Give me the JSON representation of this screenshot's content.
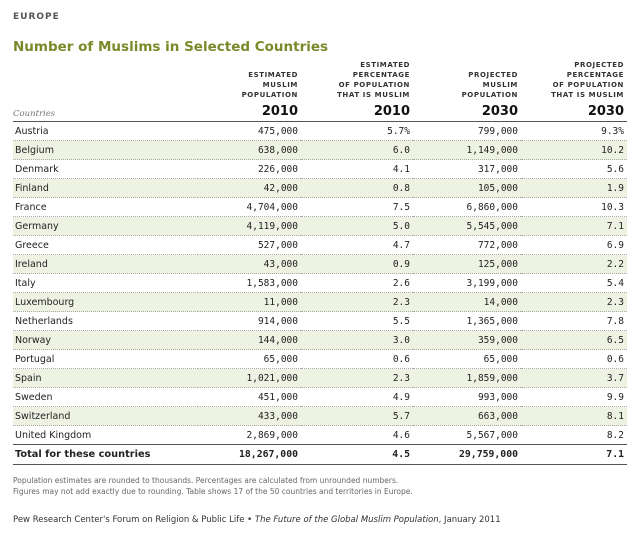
{
  "region": "EUROPE",
  "title": "Number of Muslims in Selected Countries",
  "headers": {
    "countries": "Countries",
    "col1": [
      "ESTIMATED",
      "MUSLIM",
      "POPULATION"
    ],
    "col2": [
      "ESTIMATED",
      "PERCENTAGE",
      "OF POPULATION",
      "THAT IS MUSLIM"
    ],
    "col3": [
      "PROJECTED",
      "MUSLIM",
      "POPULATION"
    ],
    "col4": [
      "PROJECTED",
      "PERCENTAGE",
      "OF POPULATION",
      "THAT IS MUSLIM"
    ],
    "years": [
      "2010",
      "2010",
      "2030",
      "2030"
    ]
  },
  "rows": [
    [
      "Austria",
      "475,000",
      "5.7%",
      "799,000",
      "9.3%"
    ],
    [
      "Belgium",
      "638,000",
      "6.0",
      "1,149,000",
      "10.2"
    ],
    [
      "Denmark",
      "226,000",
      "4.1",
      "317,000",
      "5.6"
    ],
    [
      "Finland",
      "42,000",
      "0.8",
      "105,000",
      "1.9"
    ],
    [
      "France",
      "4,704,000",
      "7.5",
      "6,860,000",
      "10.3"
    ],
    [
      "Germany",
      "4,119,000",
      "5.0",
      "5,545,000",
      "7.1"
    ],
    [
      "Greece",
      "527,000",
      "4.7",
      "772,000",
      "6.9"
    ],
    [
      "Ireland",
      "43,000",
      "0.9",
      "125,000",
      "2.2"
    ],
    [
      "Italy",
      "1,583,000",
      "2.6",
      "3,199,000",
      "5.4"
    ],
    [
      "Luxembourg",
      "11,000",
      "2.3",
      "14,000",
      "2.3"
    ],
    [
      "Netherlands",
      "914,000",
      "5.5",
      "1,365,000",
      "7.8"
    ],
    [
      "Norway",
      "144,000",
      "3.0",
      "359,000",
      "6.5"
    ],
    [
      "Portugal",
      "65,000",
      "0.6",
      "65,000",
      "0.6"
    ],
    [
      "Spain",
      "1,021,000",
      "2.3",
      "1,859,000",
      "3.7"
    ],
    [
      "Sweden",
      "451,000",
      "4.9",
      "993,000",
      "9.9"
    ],
    [
      "Switzerland",
      "433,000",
      "5.7",
      "663,000",
      "8.1"
    ],
    [
      "United Kingdom",
      "2,869,000",
      "4.6",
      "5,567,000",
      "8.2"
    ]
  ],
  "total": [
    "Total for these countries",
    "18,267,000",
    "4.5",
    "29,759,000",
    "7.1"
  ],
  "notes": [
    "Population estimates are rounded to thousands. Percentages are calculated from unrounded numbers.",
    "Figures may not add exactly due to rounding. Table shows 17 of the 50 countries and territories in Europe."
  ],
  "source": {
    "org": "Pew Research Center's Forum on Religion & Public Life • ",
    "pub": "The Future of the Global Muslim Population",
    "date": ", January 2011"
  }
}
